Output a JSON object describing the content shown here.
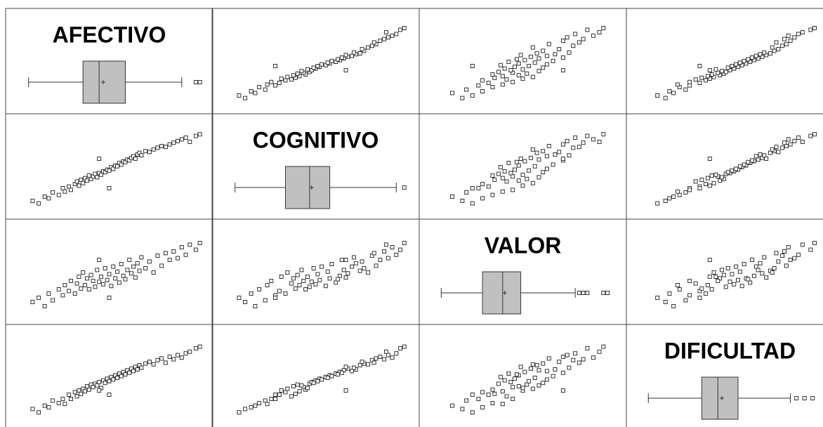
{
  "chart_data": {
    "type": "scatter-matrix",
    "lim": [
      0,
      100
    ],
    "point_color": "#333333",
    "box_color": "#c0c0c0",
    "variables": [
      {
        "name": "AFECTIVO",
        "values": [
          12,
          15,
          18,
          20,
          22,
          25,
          27,
          28,
          30,
          31,
          33,
          34,
          35,
          36,
          37,
          38,
          39,
          40,
          41,
          42,
          43,
          44,
          45,
          46,
          47,
          48,
          49,
          50,
          51,
          52,
          53,
          54,
          55,
          56,
          57,
          58,
          59,
          60,
          61,
          62,
          63,
          64,
          65,
          66,
          68,
          70,
          72,
          74,
          76,
          78,
          80,
          82,
          84,
          86,
          88,
          90,
          93,
          95,
          50,
          45
        ],
        "box": {
          "whisker_low": 10,
          "q1": 37,
          "median": 45,
          "mean": 47,
          "q3": 58,
          "whisker_high": 86,
          "outliers": [
            93,
            95
          ]
        }
      },
      {
        "name": "COGNITIVO",
        "values": [
          15,
          12,
          20,
          18,
          25,
          22,
          30,
          26,
          32,
          28,
          35,
          38,
          33,
          40,
          36,
          42,
          39,
          45,
          41,
          44,
          47,
          43,
          48,
          46,
          50,
          49,
          52,
          51,
          55,
          53,
          57,
          56,
          60,
          58,
          62,
          61,
          64,
          63,
          66,
          68,
          65,
          70,
          72,
          69,
          74,
          73,
          76,
          78,
          80,
          79,
          82,
          84,
          86,
          88,
          90,
          85,
          92,
          94,
          30,
          65
        ],
        "box": {
          "whisker_low": 10,
          "q1": 35,
          "median": 47,
          "mean": 48,
          "q3": 57,
          "whisker_high": 90,
          "outliers": [
            94
          ]
        }
      },
      {
        "name": "VALOR",
        "values": [
          20,
          25,
          15,
          30,
          22,
          35,
          28,
          40,
          33,
          45,
          30,
          42,
          50,
          36,
          55,
          40,
          48,
          35,
          52,
          45,
          38,
          58,
          44,
          50,
          41,
          60,
          46,
          53,
          39,
          62,
          48,
          56,
          43,
          65,
          51,
          47,
          58,
          70,
          54,
          62,
          49,
          66,
          57,
          73,
          60,
          68,
          55,
          75,
          63,
          78,
          70,
          80,
          72,
          85,
          76,
          88,
          82,
          90,
          25,
          70
        ],
        "box": {
          "whisker_low": 9.5,
          "q1": 30,
          "median": 40,
          "mean": 41,
          "q3": 49,
          "whisker_high": 76,
          "outliers": [
            78,
            80,
            82,
            90,
            92
          ]
        }
      },
      {
        "name": "DIFICULTAD",
        "values": [
          18,
          14,
          22,
          20,
          28,
          25,
          30,
          24,
          35,
          30,
          38,
          33,
          40,
          36,
          42,
          39,
          45,
          41,
          47,
          44,
          48,
          46,
          50,
          43,
          52,
          49,
          54,
          51,
          56,
          53,
          58,
          55,
          60,
          57,
          62,
          59,
          64,
          61,
          66,
          63,
          68,
          65,
          70,
          67,
          72,
          74,
          71,
          76,
          78,
          73,
          80,
          77,
          82,
          79,
          84,
          86,
          90,
          92,
          35,
          40
        ],
        "box": {
          "whisker_low": 9.5,
          "q1": 36,
          "median": 44,
          "mean": 46,
          "q3": 54,
          "whisker_high": 80,
          "outliers": [
            83,
            87,
            91
          ]
        }
      }
    ]
  }
}
